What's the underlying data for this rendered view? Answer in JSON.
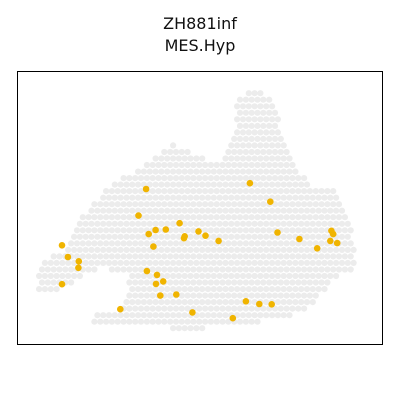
{
  "title": "ZH881inf",
  "subtitle": "MES.Hyp",
  "colors": {
    "background_spot": "#ececec",
    "highlight": "#f0b400",
    "frame": "#000000"
  },
  "chart_data": {
    "type": "scatter",
    "title": "ZH881inf",
    "subtitle": "MES.Hyp",
    "xlabel": "",
    "ylabel": "",
    "grid": false,
    "axes_ticks": false,
    "xlim": [
      0,
      100
    ],
    "ylim": [
      0,
      100
    ],
    "background_regions": [
      [
        [
          6,
          30
        ],
        [
          14,
          35
        ],
        [
          17,
          46
        ],
        [
          25,
          58
        ],
        [
          33,
          64
        ],
        [
          42,
          74
        ],
        [
          48,
          70
        ],
        [
          56,
          66
        ],
        [
          60,
          80
        ],
        [
          60,
          90
        ],
        [
          66,
          94
        ],
        [
          71,
          88
        ],
        [
          72,
          76
        ],
        [
          80,
          58
        ],
        [
          88,
          56
        ],
        [
          92,
          42
        ],
        [
          93,
          28
        ],
        [
          88,
          26
        ],
        [
          86,
          22
        ],
        [
          80,
          14
        ],
        [
          76,
          11
        ],
        [
          66,
          8
        ],
        [
          58,
          8
        ],
        [
          50,
          5
        ],
        [
          40,
          6
        ],
        [
          32,
          8
        ],
        [
          26,
          6
        ],
        [
          21,
          6
        ],
        [
          20,
          12
        ],
        [
          28,
          13
        ],
        [
          30,
          20
        ],
        [
          30,
          26
        ],
        [
          22,
          28
        ],
        [
          14,
          22
        ],
        [
          10,
          18
        ],
        [
          5,
          20
        ]
      ]
    ],
    "series": [
      {
        "role": "highlighted-spots",
        "x": [
          35.2,
          33.1,
          35.9,
          37.8,
          40.6,
          37.2,
          44.4,
          45.8,
          45.6,
          49.6,
          51.5,
          55.1,
          63.7,
          69.3,
          71.3,
          77.3,
          82.2,
          86.1,
          86.6,
          85.8,
          87.7,
          12.1,
          13.7,
          16.7,
          16.6,
          12.1,
          35.4,
          38.2,
          39.9,
          37.9,
          43.5,
          39.1,
          47.9,
          62.6,
          69.7,
          66.3,
          59.0,
          28.1
        ],
        "y": [
          57.0,
          47.2,
          40.4,
          41.9,
          42.1,
          35.8,
          44.4,
          39.6,
          38.9,
          41.4,
          39.8,
          37.9,
          59.1,
          52.3,
          41.0,
          38.6,
          35.2,
          41.6,
          40.4,
          37.9,
          37.1,
          36.3,
          32.0,
          30.4,
          28.0,
          22.0,
          26.8,
          25.4,
          23.0,
          22.1,
          18.2,
          17.8,
          11.6,
          15.7,
          14.6,
          14.7,
          9.5,
          12.8
        ]
      }
    ]
  }
}
